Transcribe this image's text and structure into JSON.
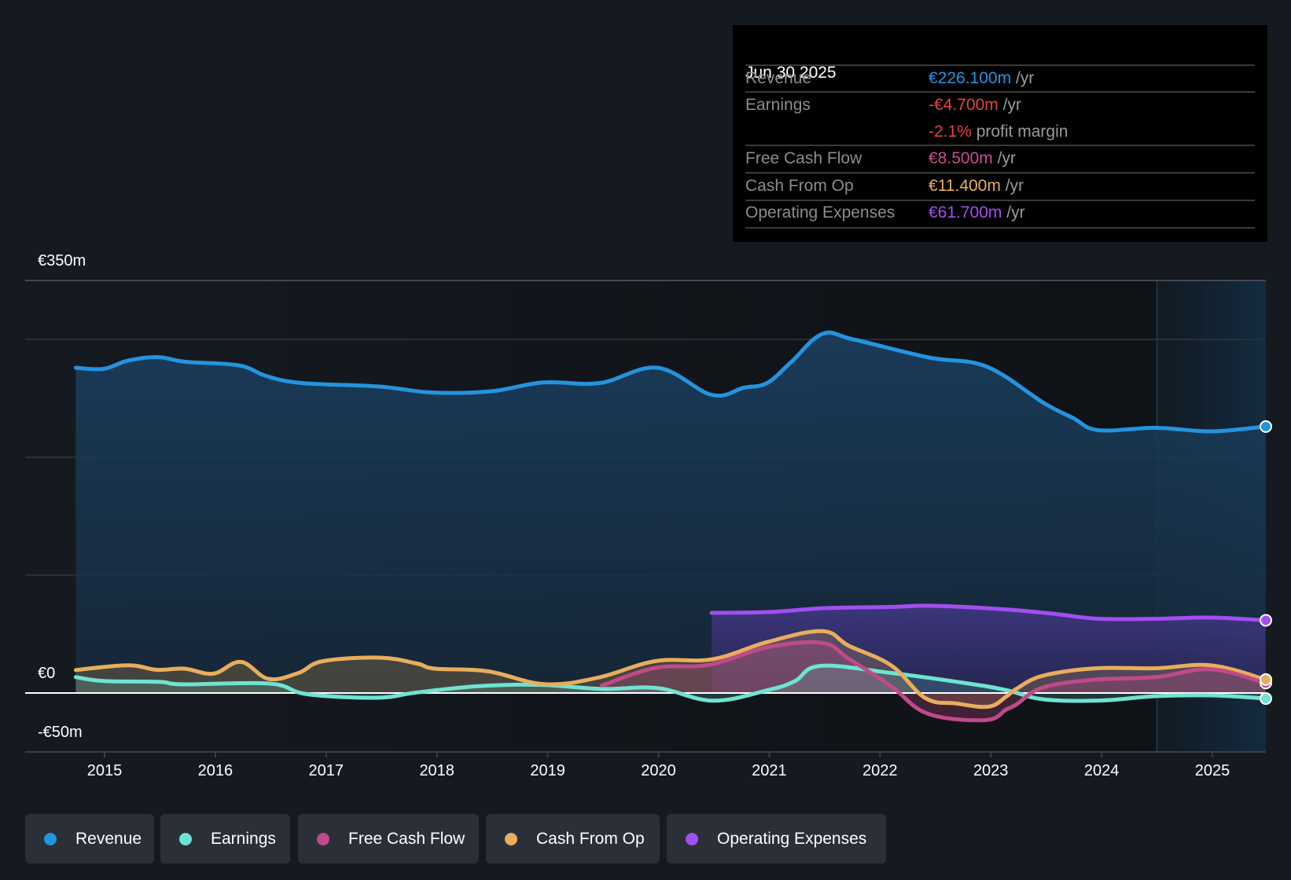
{
  "tooltip": {
    "date": "Jun 30 2025",
    "unit": "/yr",
    "rows": [
      {
        "label": "Revenue",
        "value": "€226.100m",
        "unit": "/yr",
        "color": "#2394df"
      },
      {
        "label": "Earnings",
        "value": "-€4.700m",
        "unit": "/yr",
        "color": "#e64141"
      },
      {
        "label": "",
        "value": "-2.1%",
        "unit": "profit margin",
        "color": "#e64141"
      },
      {
        "label": "Free Cash Flow",
        "value": "€8.500m",
        "unit": "/yr",
        "color": "#c94f8c"
      },
      {
        "label": "Cash From Op",
        "value": "€11.400m",
        "unit": "/yr",
        "color": "#e8ae5c"
      },
      {
        "label": "Operating Expenses",
        "value": "€61.700m",
        "unit": "/yr",
        "color": "#a34ef0"
      }
    ]
  },
  "legend": [
    {
      "label": "Revenue",
      "color": "#2394df"
    },
    {
      "label": "Earnings",
      "color": "#6fe3d1"
    },
    {
      "label": "Free Cash Flow",
      "color": "#c04a8a"
    },
    {
      "label": "Cash From Op",
      "color": "#e8ae5c"
    },
    {
      "label": "Operating Expenses",
      "color": "#a34ef0"
    }
  ],
  "chart_data": {
    "type": "area",
    "title": "",
    "xlabel": "",
    "ylabel": "",
    "currency": "EUR",
    "ylim": [
      -50,
      350
    ],
    "xlim": [
      2014.3,
      2025.5
    ],
    "y_tick_labels": [
      {
        "value": 350,
        "label": "€350m"
      },
      {
        "value": 0,
        "label": "€0"
      },
      {
        "value": -50,
        "label": "-€50m"
      }
    ],
    "y_gridlines": [
      350,
      300,
      200,
      100,
      0,
      -50
    ],
    "x_ticks": [
      2015,
      2016,
      2017,
      2018,
      2019,
      2020,
      2021,
      2022,
      2023,
      2024,
      2025
    ],
    "x_tick_labels": [
      "2015",
      "2016",
      "2017",
      "2018",
      "2019",
      "2020",
      "2021",
      "2022",
      "2023",
      "2024",
      "2025"
    ],
    "highlight_range": [
      2024.5,
      2025.5
    ],
    "grid": true,
    "legend_position": "bottom",
    "series": [
      {
        "name": "Revenue",
        "color": "#2394df",
        "x": [
          2014.74,
          2014.99,
          2015.21,
          2015.48,
          2015.73,
          2016.21,
          2016.46,
          2016.78,
          2017.48,
          2017.95,
          2018.49,
          2018.96,
          2019.47,
          2019.99,
          2020.48,
          2020.77,
          2020.98,
          2021.2,
          2021.48,
          2021.76,
          2022.44,
          2022.96,
          2023.48,
          2023.74,
          2023.97,
          2024.49,
          2024.99,
          2025.48
        ],
        "y": [
          276,
          275,
          282,
          285,
          281,
          278,
          269,
          263,
          260,
          255,
          256,
          263.5,
          263,
          276,
          253,
          259,
          263,
          281,
          304.7,
          300,
          284.7,
          277,
          246,
          233.5,
          223,
          225,
          222,
          226.1
        ]
      },
      {
        "name": "Earnings",
        "color": "#6fe3d1",
        "x": [
          2014.74,
          2014.99,
          2015.49,
          2015.71,
          2016.49,
          2016.83,
          2017.46,
          2017.82,
          2018.38,
          2018.93,
          2019.49,
          2019.99,
          2020.49,
          2020.99,
          2021.23,
          2021.46,
          2022.1,
          2022.8,
          2023.14,
          2023.47,
          2023.98,
          2024.49,
          2024.99,
          2025.48
        ],
        "y": [
          13.5,
          10.2,
          9.5,
          7.3,
          8,
          -1,
          -4,
          0.5,
          5.8,
          6.9,
          3.5,
          4.2,
          -6.5,
          2.5,
          10,
          23,
          17,
          8,
          2.5,
          -5.3,
          -6.4,
          -2.7,
          -2,
          -4.7
        ]
      },
      {
        "name": "Free Cash Flow",
        "color": "#c04a8a",
        "x": [
          2019.49,
          2019.97,
          2020.46,
          2020.99,
          2021.48,
          2021.72,
          2022.1,
          2022.43,
          2022.95,
          2023.14,
          2023.23,
          2023.47,
          2023.94,
          2024.49,
          2024.99,
          2025.48
        ],
        "y": [
          6.4,
          21.3,
          24,
          39,
          42.5,
          29,
          5.8,
          -17.5,
          -23,
          -14,
          -9.8,
          4.7,
          11.3,
          13.5,
          20.2,
          8.5
        ]
      },
      {
        "name": "Cash From Op",
        "color": "#e8ae5c",
        "x": [
          2014.74,
          2015.21,
          2015.47,
          2015.72,
          2015.98,
          2016.23,
          2016.48,
          2016.75,
          2016.97,
          2017.48,
          2017.82,
          2017.98,
          2018.46,
          2018.97,
          2019.45,
          2019.97,
          2020.49,
          2020.99,
          2021.48,
          2021.72,
          2022.1,
          2022.41,
          2022.69,
          2022.98,
          2023.14,
          2023.23,
          2023.47,
          2023.94,
          2024.49,
          2024.99,
          2025.48
        ],
        "y": [
          19.5,
          23.5,
          19.7,
          20.7,
          16.4,
          26.4,
          12,
          17,
          27,
          30,
          25,
          20.7,
          18.4,
          7.5,
          12.9,
          27,
          28.7,
          43.5,
          52.5,
          40,
          23.5,
          -4.4,
          -8.9,
          -11.6,
          -3,
          3.5,
          14.7,
          20.9,
          21,
          23.5,
          11.4
        ]
      },
      {
        "name": "Operating Expenses",
        "color": "#a34ef0",
        "x": [
          2020.48,
          2020.99,
          2021.5,
          2022.09,
          2022.48,
          2023.12,
          2023.59,
          2023.97,
          2024.49,
          2024.99,
          2025.48
        ],
        "y": [
          68,
          68.7,
          72,
          73,
          74,
          71,
          67,
          63,
          63,
          64,
          61.7
        ]
      }
    ]
  }
}
